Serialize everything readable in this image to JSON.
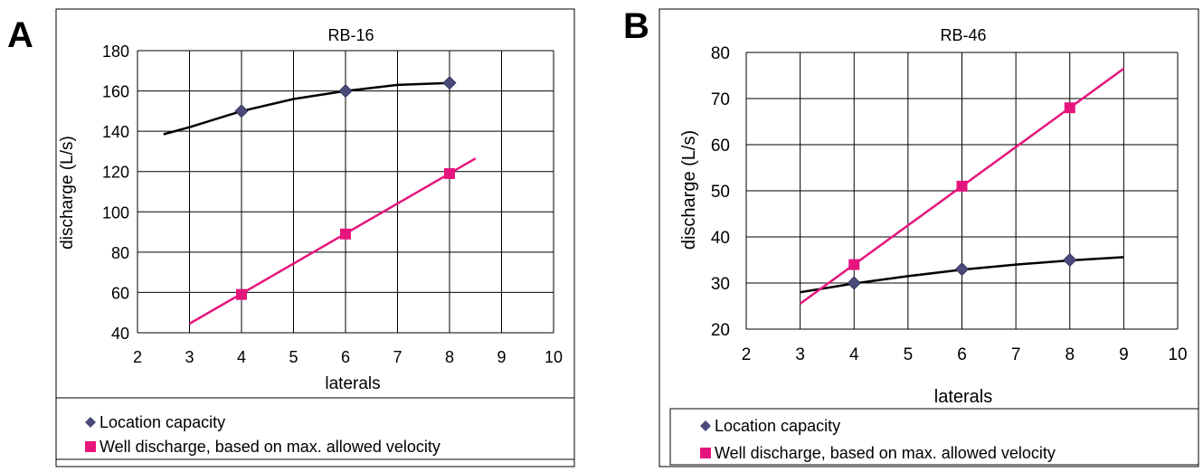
{
  "colors": {
    "fit_line": "#000000",
    "capacity_marker": "#4a4a7a",
    "discharge_series": "#e6157d",
    "grid": "#000000"
  },
  "chart_data": [
    {
      "panel_label": "A",
      "type": "scatter",
      "title": "RB-16",
      "xlabel": "laterals",
      "ylabel": "discharge (L/s)",
      "xlim": [
        2,
        10
      ],
      "ylim": [
        40,
        180
      ],
      "xticks": [
        2,
        3,
        4,
        5,
        6,
        7,
        8,
        9,
        10
      ],
      "yticks": [
        40,
        60,
        80,
        100,
        120,
        140,
        160,
        180
      ],
      "grid": true,
      "legend_position": "bottom",
      "series": [
        {
          "name": "Location capacity",
          "marker": "diamond",
          "color_key": "capacity_marker",
          "points": [
            [
              4,
              150
            ],
            [
              6,
              160
            ],
            [
              8,
              164
            ]
          ],
          "trendline": {
            "kind": "curve",
            "points": [
              [
                2.5,
                138.5
              ],
              [
                3,
                142
              ],
              [
                4,
                150
              ],
              [
                5,
                156
              ],
              [
                6,
                160
              ],
              [
                7,
                163
              ],
              [
                8,
                164
              ]
            ]
          }
        },
        {
          "name": "Well discharge, based on max. allowed velocity",
          "marker": "square",
          "color_key": "discharge_series",
          "points": [
            [
              4,
              59
            ],
            [
              6,
              89
            ],
            [
              8,
              119
            ]
          ],
          "trendline": {
            "kind": "line",
            "points": [
              [
                3,
                44.5
              ],
              [
                8.5,
                126.5
              ]
            ]
          }
        }
      ]
    },
    {
      "panel_label": "B",
      "type": "scatter",
      "title": "RB-46",
      "xlabel": "laterals",
      "ylabel": "discharge (L/s)",
      "xlim": [
        2,
        10
      ],
      "ylim": [
        20,
        80
      ],
      "xticks": [
        2,
        3,
        4,
        5,
        6,
        7,
        8,
        9,
        10
      ],
      "yticks": [
        20,
        30,
        40,
        50,
        60,
        70,
        80
      ],
      "grid": true,
      "legend_position": "bottom",
      "series": [
        {
          "name": "Location capacity",
          "marker": "diamond",
          "color_key": "capacity_marker",
          "points": [
            [
              4,
              30
            ],
            [
              6,
              33
            ],
            [
              8,
              35
            ]
          ],
          "trendline": {
            "kind": "curve",
            "points": [
              [
                3,
                28
              ],
              [
                4,
                29.9
              ],
              [
                5,
                31.5
              ],
              [
                6,
                32.9
              ],
              [
                7,
                34
              ],
              [
                8,
                34.9
              ],
              [
                9,
                35.6
              ]
            ]
          }
        },
        {
          "name": "Well discharge, based on max. allowed velocity",
          "marker": "square",
          "color_key": "discharge_series",
          "points": [
            [
              4,
              34
            ],
            [
              6,
              51
            ],
            [
              8,
              68
            ]
          ],
          "trendline": {
            "kind": "line",
            "points": [
              [
                3,
                25.5
              ],
              [
                9,
                76.5
              ]
            ]
          }
        }
      ]
    }
  ]
}
